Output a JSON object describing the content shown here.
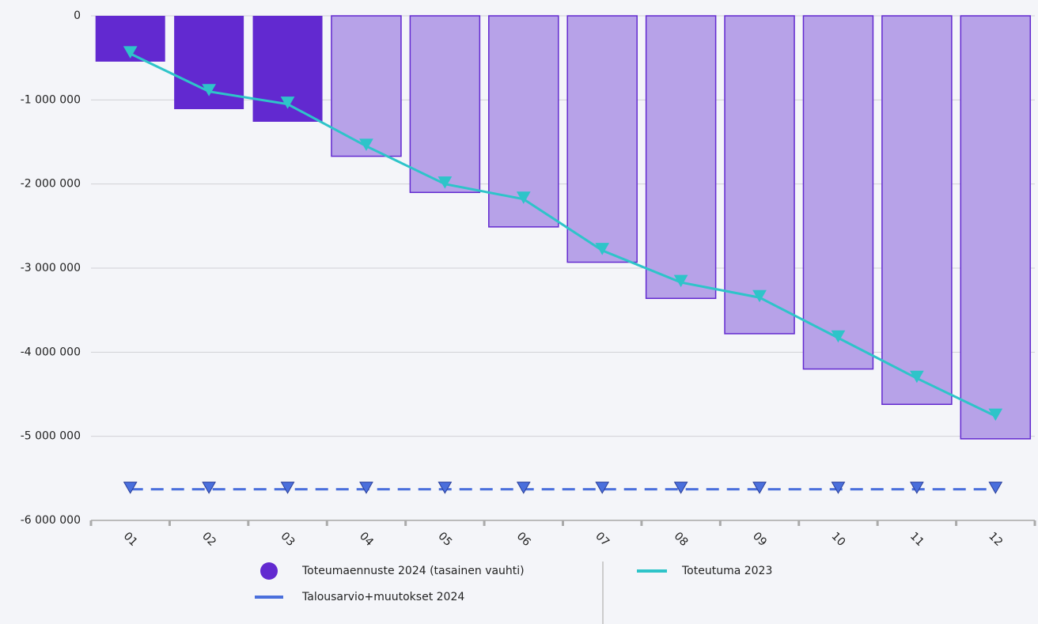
{
  "chart_data": {
    "type": "bar-line",
    "categories": [
      "01",
      "02",
      "03",
      "04",
      "05",
      "06",
      "07",
      "08",
      "09",
      "10",
      "11",
      "12"
    ],
    "ylim": [
      -6000000,
      0
    ],
    "yticks": [
      0,
      {
        "value": -1000000,
        "label": "-1 000 000"
      },
      {
        "value": -2000000,
        "label": "-2 000 000"
      },
      {
        "value": -3000000,
        "label": "-3 000 000"
      },
      {
        "value": -4000000,
        "label": "-4 000 000"
      },
      {
        "value": -5000000,
        "label": "-5 000 000"
      },
      {
        "value": -6000000,
        "label": "-6 000 000"
      }
    ],
    "grid": true,
    "series": [
      {
        "name": "Toteumaennuste 2024 (tasainen vauhti)",
        "type": "bar",
        "color": "#6229d0",
        "colors": [
          "#6229d0",
          "#6229d0",
          "#6229d0",
          "#b7a2e8",
          "#b7a2e8",
          "#b7a2e8",
          "#b7a2e8",
          "#b7a2e8",
          "#b7a2e8",
          "#b7a2e8",
          "#b7a2e8",
          "#b7a2e8"
        ],
        "values": [
          -545000,
          -1110000,
          -1260000,
          -1670000,
          -2100000,
          -2510000,
          -2930000,
          -3360000,
          -3780000,
          -4200000,
          -4620000,
          -5030000
        ]
      },
      {
        "name": "Talousarvio+muutokset 2024",
        "type": "line",
        "color": "#4a6fdc",
        "dashed": true,
        "marker": "triangle-down",
        "values": [
          -5630000,
          -5630000,
          -5630000,
          -5630000,
          -5630000,
          -5630000,
          -5630000,
          -5630000,
          -5630000,
          -5630000,
          -5630000,
          -5630000
        ]
      },
      {
        "name": "Toteutuma 2023",
        "type": "line",
        "color": "#2ec4c9",
        "dashed": false,
        "marker": "triangle-down",
        "values": [
          -450000,
          -900000,
          -1050000,
          -1550000,
          -2000000,
          -2180000,
          -2790000,
          -3170000,
          -3350000,
          -3830000,
          -4310000,
          -4760000
        ]
      }
    ]
  }
}
